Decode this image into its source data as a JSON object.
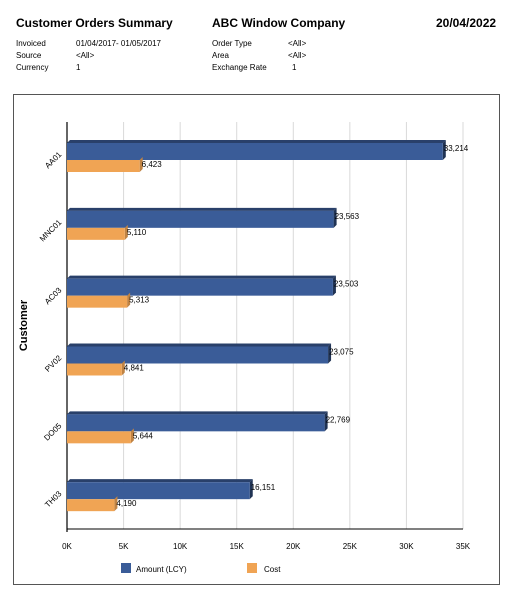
{
  "report": {
    "title": "Customer Orders Summary",
    "company": "ABC Window Company",
    "date": "20/04/2022"
  },
  "filters": {
    "invoiced_label": "Invoiced",
    "invoiced_value": "01/04/2017- 01/05/2017",
    "source_label": "Source",
    "source_value": "<All>",
    "currency_label": "Currency",
    "currency_value": "1",
    "order_type_label": "Order Type",
    "order_type_value": "<All>",
    "area_label": "Area",
    "area_value": "<All>",
    "exchange_rate_label": "Exchange Rate",
    "exchange_rate_value": "1"
  },
  "chart_data": {
    "type": "bar",
    "orientation": "horizontal",
    "categories": [
      "AA01",
      "MNC01",
      "AC03",
      "PV02",
      "DO05",
      "TH03"
    ],
    "series": [
      {
        "name": "Amount (LCY)",
        "color": "#3a5c98",
        "values": [
          33214,
          23563,
          23503,
          23075,
          22769,
          16151
        ],
        "labels": [
          "33,214",
          "23,563",
          "23,503",
          "23,075",
          "22,769",
          "16,151"
        ]
      },
      {
        "name": "Cost",
        "color": "#f0a454",
        "values": [
          6423,
          5110,
          5313,
          4841,
          5644,
          4190
        ],
        "labels": [
          "6,423",
          "5,110",
          "5,313",
          "4,841",
          "5,644",
          "4,190"
        ]
      }
    ],
    "ylabel": "Customer",
    "xlabel": "",
    "xlim": [
      0,
      35000
    ],
    "x_ticks": [
      0,
      5000,
      10000,
      15000,
      20000,
      25000,
      30000,
      35000
    ],
    "x_tick_labels": [
      "0K",
      "5K",
      "10K",
      "15K",
      "20K",
      "25K",
      "30K",
      "35K"
    ],
    "grid": true,
    "legend": "bottom"
  }
}
